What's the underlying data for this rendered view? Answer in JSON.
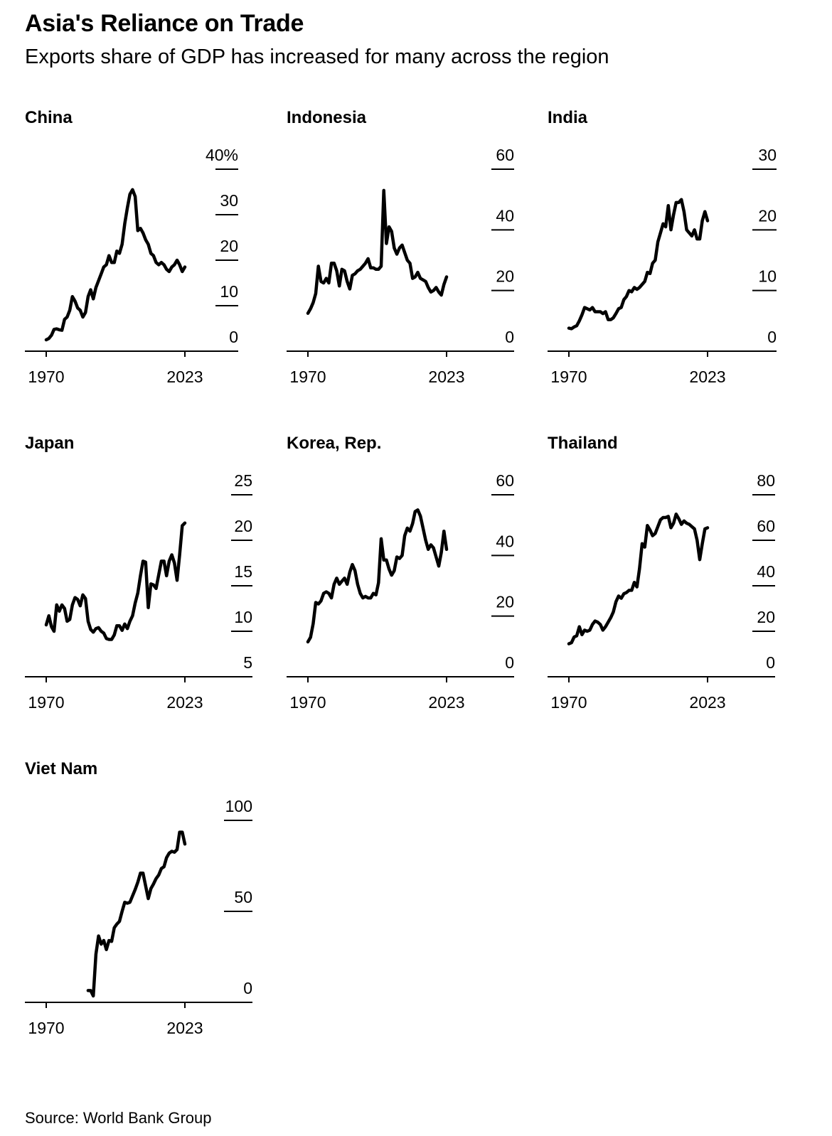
{
  "header": {
    "title": "Asia's Reliance on Trade",
    "subtitle": "Exports share of GDP has increased for many across the region"
  },
  "footer": {
    "source": "Source: World Bank Group"
  },
  "chart_data": [
    {
      "type": "line",
      "title": "China",
      "ylim": [
        0,
        40
      ],
      "yticks": [
        "0",
        "10",
        "20",
        "30",
        "40%"
      ],
      "xticks": [
        "1970",
        "2023"
      ],
      "x": [
        1970,
        1971,
        1972,
        1973,
        1974,
        1975,
        1976,
        1977,
        1978,
        1979,
        1980,
        1981,
        1982,
        1983,
        1984,
        1985,
        1986,
        1987,
        1988,
        1989,
        1990,
        1991,
        1992,
        1993,
        1994,
        1995,
        1996,
        1997,
        1998,
        1999,
        2000,
        2001,
        2002,
        2003,
        2004,
        2005,
        2006,
        2007,
        2008,
        2009,
        2010,
        2011,
        2012,
        2013,
        2014,
        2015,
        2016,
        2017,
        2018,
        2019,
        2020,
        2021,
        2022,
        2023
      ],
      "series": [
        {
          "values": [
            2.5,
            2.8,
            3.5,
            4.8,
            4.9,
            4.7,
            4.6,
            7.0,
            7.5,
            9.0,
            12.0,
            11.0,
            9.5,
            9.0,
            7.5,
            8.5,
            12.0,
            13.5,
            11.5,
            14.0,
            15.5,
            17.0,
            18.5,
            19.0,
            21.0,
            19.5,
            19.5,
            22.0,
            21.5,
            23.5,
            28.0,
            31.5,
            34.5,
            35.5,
            34.0,
            26.5,
            27.0,
            26.0,
            24.5,
            23.5,
            21.5,
            21.0,
            19.5,
            19.0,
            19.5,
            19.0,
            18.0,
            17.5,
            18.5,
            19.0,
            20.0,
            19.0,
            17.5,
            18.5
          ]
        }
      ]
    },
    {
      "type": "line",
      "title": "Indonesia",
      "ylim": [
        0,
        60
      ],
      "yticks": [
        "0",
        "20",
        "40",
        "60"
      ],
      "xticks": [
        "1970",
        "2023"
      ],
      "x": [
        1970,
        1971,
        1972,
        1973,
        1974,
        1975,
        1976,
        1977,
        1978,
        1979,
        1980,
        1981,
        1982,
        1983,
        1984,
        1985,
        1986,
        1987,
        1988,
        1989,
        1990,
        1991,
        1992,
        1993,
        1994,
        1995,
        1996,
        1997,
        1998,
        1999,
        2000,
        2001,
        2002,
        2003,
        2004,
        2005,
        2006,
        2007,
        2008,
        2009,
        2010,
        2011,
        2012,
        2013,
        2014,
        2015,
        2016,
        2017,
        2018,
        2019,
        2020,
        2021,
        2022,
        2023
      ],
      "series": [
        {
          "values": [
            12.5,
            14.0,
            16.0,
            19.0,
            28.0,
            23.0,
            22.5,
            24.0,
            22.5,
            29.0,
            29.0,
            26.5,
            21.5,
            27.0,
            26.5,
            23.0,
            20.5,
            25.0,
            25.5,
            26.5,
            27.0,
            28.0,
            29.0,
            30.5,
            27.5,
            27.5,
            27.0,
            27.0,
            28.0,
            53.0,
            35.5,
            41.0,
            39.5,
            34.0,
            32.0,
            34.0,
            35.0,
            32.5,
            30.0,
            29.0,
            24.0,
            24.5,
            26.0,
            24.0,
            23.5,
            23.0,
            21.0,
            19.5,
            20.0,
            21.0,
            19.5,
            18.5,
            22.0,
            24.5
          ]
        }
      ]
    },
    {
      "type": "line",
      "title": "India",
      "ylim": [
        0,
        30
      ],
      "yticks": [
        "0",
        "10",
        "20",
        "30"
      ],
      "xticks": [
        "1970",
        "2023"
      ],
      "x": [
        1970,
        1971,
        1972,
        1973,
        1974,
        1975,
        1976,
        1977,
        1978,
        1979,
        1980,
        1981,
        1982,
        1983,
        1984,
        1985,
        1986,
        1987,
        1988,
        1989,
        1990,
        1991,
        1992,
        1993,
        1994,
        1995,
        1996,
        1997,
        1998,
        1999,
        2000,
        2001,
        2002,
        2003,
        2004,
        2005,
        2006,
        2007,
        2008,
        2009,
        2010,
        2011,
        2012,
        2013,
        2014,
        2015,
        2016,
        2017,
        2018,
        2019,
        2020,
        2021,
        2022,
        2023
      ],
      "series": [
        {
          "values": [
            3.8,
            3.7,
            4.0,
            4.2,
            5.0,
            6.0,
            7.2,
            7.0,
            6.8,
            7.2,
            6.5,
            6.5,
            6.5,
            6.2,
            6.5,
            5.2,
            5.2,
            5.5,
            6.2,
            7.0,
            7.2,
            8.5,
            9.0,
            10.0,
            9.8,
            10.5,
            10.2,
            10.5,
            11.0,
            11.5,
            13.0,
            12.8,
            14.5,
            15.0,
            18.0,
            19.5,
            21.0,
            20.5,
            24.0,
            20.0,
            22.5,
            24.5,
            24.5,
            25.0,
            23.0,
            20.0,
            19.5,
            19.0,
            20.0,
            18.5,
            18.5,
            21.5,
            23.0,
            21.5
          ]
        }
      ]
    },
    {
      "type": "line",
      "title": "Japan",
      "ylim": [
        5,
        25
      ],
      "yticks": [
        "5",
        "10",
        "15",
        "20",
        "25"
      ],
      "xticks": [
        "1970",
        "2023"
      ],
      "x": [
        1970,
        1971,
        1972,
        1973,
        1974,
        1975,
        1976,
        1977,
        1978,
        1979,
        1980,
        1981,
        1982,
        1983,
        1984,
        1985,
        1986,
        1987,
        1988,
        1989,
        1990,
        1991,
        1992,
        1993,
        1994,
        1995,
        1996,
        1997,
        1998,
        1999,
        2000,
        2001,
        2002,
        2003,
        2004,
        2005,
        2006,
        2007,
        2008,
        2009,
        2010,
        2011,
        2012,
        2013,
        2014,
        2015,
        2016,
        2017,
        2018,
        2019,
        2020,
        2021,
        2022,
        2023
      ],
      "series": [
        {
          "values": [
            10.7,
            11.7,
            10.5,
            10.0,
            12.9,
            12.2,
            12.9,
            12.5,
            11.1,
            11.3,
            12.9,
            13.7,
            13.5,
            12.8,
            14.0,
            13.6,
            11.1,
            10.2,
            9.9,
            10.3,
            10.4,
            10.0,
            9.8,
            9.2,
            9.1,
            9.1,
            9.6,
            10.6,
            10.6,
            10.1,
            10.8,
            10.3,
            11.1,
            11.7,
            13.1,
            14.2,
            16.1,
            17.7,
            17.6,
            12.6,
            15.2,
            15.1,
            14.7,
            16.2,
            17.7,
            17.7,
            16.1,
            17.7,
            18.4,
            17.5,
            15.6,
            18.4,
            21.6,
            21.9
          ]
        }
      ]
    },
    {
      "type": "line",
      "title": "Korea, Rep.",
      "ylim": [
        0,
        60
      ],
      "yticks": [
        "0",
        "20",
        "40",
        "60"
      ],
      "xticks": [
        "1970",
        "2023"
      ],
      "x": [
        1970,
        1971,
        1972,
        1973,
        1974,
        1975,
        1976,
        1977,
        1978,
        1979,
        1980,
        1981,
        1982,
        1983,
        1984,
        1985,
        1986,
        1987,
        1988,
        1989,
        1990,
        1991,
        1992,
        1993,
        1994,
        1995,
        1996,
        1997,
        1998,
        1999,
        2000,
        2001,
        2002,
        2003,
        2004,
        2005,
        2006,
        2007,
        2008,
        2009,
        2010,
        2011,
        2012,
        2013,
        2014,
        2015,
        2016,
        2017,
        2018,
        2019,
        2020,
        2021,
        2022,
        2023
      ],
      "series": [
        {
          "values": [
            11.5,
            13.0,
            17.5,
            24.5,
            24.0,
            25.0,
            27.5,
            28.0,
            27.5,
            26.0,
            30.5,
            32.5,
            30.5,
            31.5,
            32.5,
            30.5,
            34.5,
            37.0,
            35.0,
            30.5,
            27.5,
            26.0,
            26.5,
            26.0,
            26.0,
            27.5,
            27.0,
            31.0,
            45.5,
            38.5,
            38.5,
            35.5,
            33.5,
            35.0,
            39.5,
            39.0,
            40.0,
            46.5,
            49.0,
            48.0,
            50.5,
            54.5,
            55.0,
            53.0,
            49.0,
            45.0,
            42.0,
            43.5,
            42.5,
            39.5,
            36.5,
            41.0,
            48.0,
            42.0
          ]
        }
      ]
    },
    {
      "type": "line",
      "title": "Thailand",
      "ylim": [
        0,
        80
      ],
      "yticks": [
        "0",
        "20",
        "40",
        "60",
        "80"
      ],
      "xticks": [
        "1970",
        "2023"
      ],
      "x": [
        1970,
        1971,
        1972,
        1973,
        1974,
        1975,
        1976,
        1977,
        1978,
        1979,
        1980,
        1981,
        1982,
        1983,
        1984,
        1985,
        1986,
        1987,
        1988,
        1989,
        1990,
        1991,
        1992,
        1993,
        1994,
        1995,
        1996,
        1997,
        1998,
        1999,
        2000,
        2001,
        2002,
        2003,
        2004,
        2005,
        2006,
        2007,
        2008,
        2009,
        2010,
        2011,
        2012,
        2013,
        2014,
        2015,
        2016,
        2017,
        2018,
        2019,
        2020,
        2021,
        2022,
        2023
      ],
      "series": [
        {
          "values": [
            14.5,
            15.0,
            17.5,
            18.0,
            22.0,
            18.5,
            20.5,
            20.0,
            20.5,
            23.0,
            24.5,
            24.0,
            23.0,
            20.5,
            22.0,
            24.0,
            26.0,
            28.5,
            33.0,
            35.5,
            34.5,
            36.5,
            37.0,
            38.0,
            38.0,
            41.5,
            39.5,
            47.5,
            58.5,
            57.0,
            66.5,
            64.5,
            62.0,
            63.0,
            66.0,
            69.0,
            70.0,
            70.0,
            70.5,
            65.5,
            67.5,
            71.5,
            69.5,
            67.0,
            68.5,
            67.5,
            67.0,
            66.0,
            65.0,
            60.0,
            51.5,
            58.5,
            65.0,
            65.5
          ]
        }
      ]
    },
    {
      "type": "line",
      "title": "Viet Nam",
      "ylim": [
        0,
        100
      ],
      "yticks": [
        "0",
        "50",
        "100"
      ],
      "xticks": [
        "1970",
        "2023"
      ],
      "x": [
        1986,
        1987,
        1988,
        1989,
        1990,
        1991,
        1992,
        1993,
        1994,
        1995,
        1996,
        1997,
        1998,
        1999,
        2000,
        2001,
        2002,
        2003,
        2004,
        2005,
        2006,
        2007,
        2008,
        2009,
        2010,
        2011,
        2012,
        2013,
        2014,
        2015,
        2016,
        2017,
        2018,
        2019,
        2020,
        2021,
        2022,
        2023
      ],
      "series": [
        {
          "values": [
            6.5,
            6.5,
            3.5,
            26.5,
            36.5,
            32.0,
            34.0,
            29.0,
            34.0,
            33.5,
            41.0,
            43.0,
            44.5,
            50.0,
            55.0,
            54.5,
            55.0,
            58.5,
            62.0,
            66.0,
            71.0,
            71.0,
            64.0,
            57.0,
            62.5,
            65.0,
            68.0,
            70.0,
            73.5,
            74.5,
            79.5,
            82.0,
            83.0,
            82.5,
            84.0,
            93.5,
            93.5,
            87.0
          ]
        }
      ]
    }
  ]
}
